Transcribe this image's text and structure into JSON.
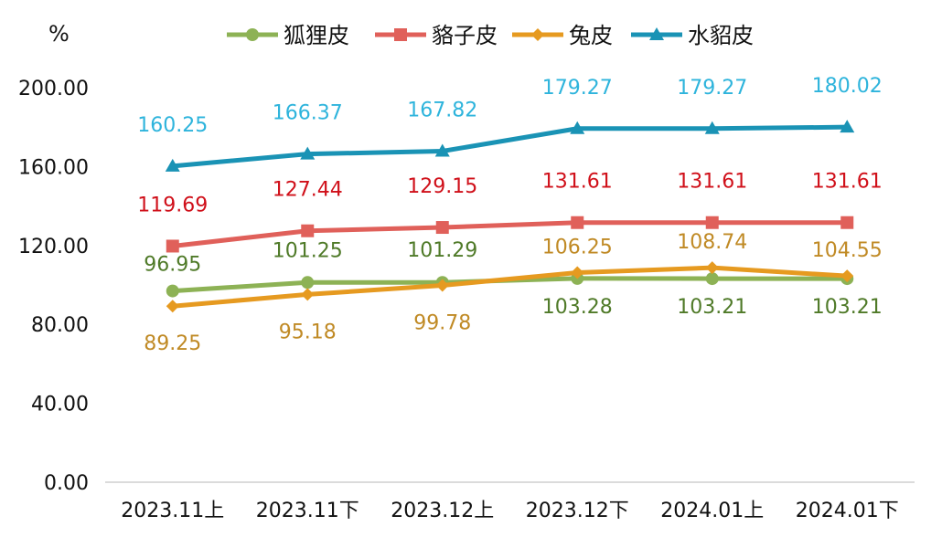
{
  "chart_data": {
    "type": "line",
    "unit_label": "%",
    "categories": [
      "2023.11上",
      "2023.11下",
      "2023.12上",
      "2023.12下",
      "2024.01上",
      "2024.01下"
    ],
    "y_ticks": [
      "0.00",
      "40.00",
      "80.00",
      "120.00",
      "160.00",
      "200.00"
    ],
    "ylim": [
      0,
      200
    ],
    "grid": false,
    "legend_position": "top",
    "series": [
      {
        "name": "狐狸皮",
        "values": [
          96.95,
          101.25,
          101.29,
          103.28,
          103.21,
          103.21
        ],
        "labels": [
          "96.95",
          "101.25",
          "101.29",
          "103.28",
          "103.21",
          "103.21"
        ],
        "color": "#8DB255",
        "label_color": "#4F7A28",
        "marker": "circle"
      },
      {
        "name": "貉子皮",
        "values": [
          119.69,
          127.44,
          129.15,
          131.61,
          131.61,
          131.61
        ],
        "labels": [
          "119.69",
          "127.44",
          "129.15",
          "131.61",
          "131.61",
          "131.61"
        ],
        "color": "#E0605A",
        "label_color": "#D0101A",
        "marker": "square"
      },
      {
        "name": "兔皮",
        "values": [
          89.25,
          95.18,
          99.78,
          106.25,
          108.74,
          104.55
        ],
        "labels": [
          "89.25",
          "95.18",
          "99.78",
          "106.25",
          "108.74",
          "104.55"
        ],
        "color": "#E69A20",
        "label_color": "#C08A25",
        "marker": "diamond"
      },
      {
        "name": "水貂皮",
        "values": [
          160.25,
          166.37,
          167.82,
          179.27,
          179.27,
          180.02
        ],
        "labels": [
          "160.25",
          "166.37",
          "167.82",
          "179.27",
          "179.27",
          "180.02"
        ],
        "color": "#1A93B5",
        "label_color": "#2EB4DC",
        "marker": "triangle"
      }
    ]
  }
}
